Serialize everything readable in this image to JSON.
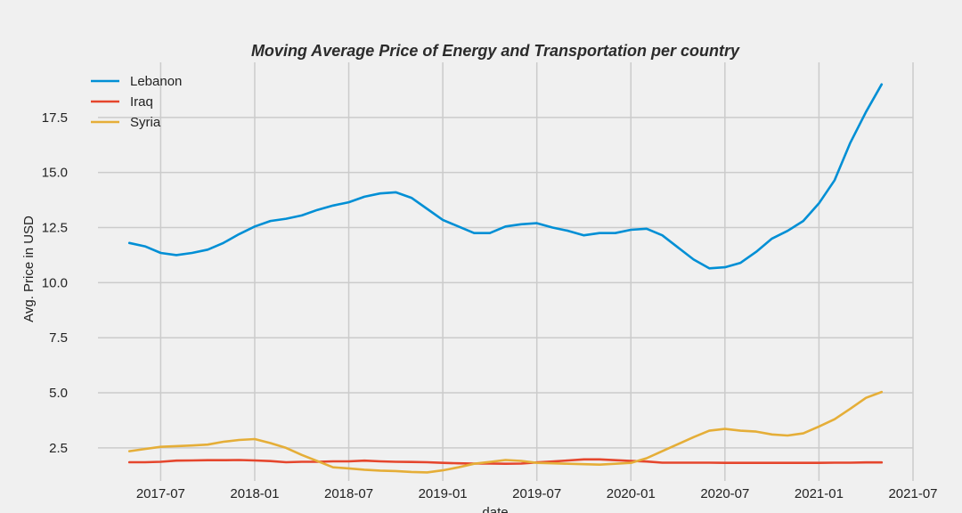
{
  "chart_data": {
    "type": "line",
    "title": "Moving Average Price of Energy and Transportation per country",
    "xlabel": "date",
    "ylabel": "Avg. Price in USD",
    "x_ticks": [
      "2017-07",
      "2018-01",
      "2018-07",
      "2019-01",
      "2019-07",
      "2020-01",
      "2020-07",
      "2021-01",
      "2021-07"
    ],
    "y_ticks": [
      "2.5",
      "5.0",
      "7.5",
      "10.0",
      "12.5",
      "15.0",
      "17.5"
    ],
    "ylim": [
      1.0,
      20.0
    ],
    "xlim": [
      "2017-03",
      "2021-07"
    ],
    "grid": true,
    "legend_position": "top-left",
    "x": [
      "2017-05",
      "2017-06",
      "2017-07",
      "2017-08",
      "2017-09",
      "2017-10",
      "2017-11",
      "2017-12",
      "2018-01",
      "2018-02",
      "2018-03",
      "2018-04",
      "2018-05",
      "2018-06",
      "2018-07",
      "2018-08",
      "2018-09",
      "2018-10",
      "2018-11",
      "2018-12",
      "2019-01",
      "2019-02",
      "2019-03",
      "2019-04",
      "2019-05",
      "2019-06",
      "2019-07",
      "2019-08",
      "2019-09",
      "2019-10",
      "2019-11",
      "2019-12",
      "2020-01",
      "2020-02",
      "2020-03",
      "2020-04",
      "2020-05",
      "2020-06",
      "2020-07",
      "2020-08",
      "2020-09",
      "2020-10",
      "2020-11",
      "2020-12",
      "2021-01",
      "2021-02",
      "2021-03",
      "2021-04",
      "2021-05"
    ],
    "series": [
      {
        "name": "Lebanon",
        "color": "#008fd5",
        "values": [
          11.8,
          11.65,
          11.35,
          11.25,
          11.35,
          11.5,
          11.8,
          12.2,
          12.55,
          12.8,
          12.9,
          13.05,
          13.3,
          13.5,
          13.65,
          13.9,
          14.05,
          14.1,
          13.85,
          13.35,
          12.85,
          12.55,
          12.25,
          12.25,
          12.55,
          12.65,
          12.7,
          12.5,
          12.35,
          12.15,
          12.25,
          12.25,
          12.4,
          12.45,
          12.15,
          11.6,
          11.05,
          10.65,
          10.7,
          10.9,
          11.4,
          12.0,
          12.35,
          12.8,
          13.6,
          14.65,
          16.35,
          17.75,
          19.0
        ]
      },
      {
        "name": "Iraq",
        "color": "#e5462d",
        "values": [
          1.85,
          1.85,
          1.87,
          1.92,
          1.93,
          1.94,
          1.94,
          1.95,
          1.93,
          1.9,
          1.85,
          1.87,
          1.87,
          1.89,
          1.89,
          1.92,
          1.89,
          1.87,
          1.86,
          1.85,
          1.82,
          1.8,
          1.79,
          1.79,
          1.78,
          1.79,
          1.84,
          1.88,
          1.93,
          1.98,
          1.98,
          1.94,
          1.91,
          1.88,
          1.83,
          1.83,
          1.83,
          1.83,
          1.82,
          1.82,
          1.82,
          1.82,
          1.82,
          1.82,
          1.82,
          1.83,
          1.83,
          1.84,
          1.84
        ]
      },
      {
        "name": "Syria",
        "color": "#e5ae38",
        "values": [
          2.35,
          2.45,
          2.55,
          2.58,
          2.61,
          2.65,
          2.78,
          2.86,
          2.9,
          2.72,
          2.5,
          2.18,
          1.9,
          1.62,
          1.57,
          1.51,
          1.47,
          1.45,
          1.41,
          1.39,
          1.48,
          1.62,
          1.78,
          1.86,
          1.95,
          1.91,
          1.82,
          1.8,
          1.78,
          1.76,
          1.74,
          1.78,
          1.82,
          2.03,
          2.35,
          2.67,
          2.99,
          3.28,
          3.36,
          3.28,
          3.24,
          3.11,
          3.06,
          3.16,
          3.47,
          3.8,
          4.28,
          4.77,
          5.04
        ]
      }
    ]
  }
}
